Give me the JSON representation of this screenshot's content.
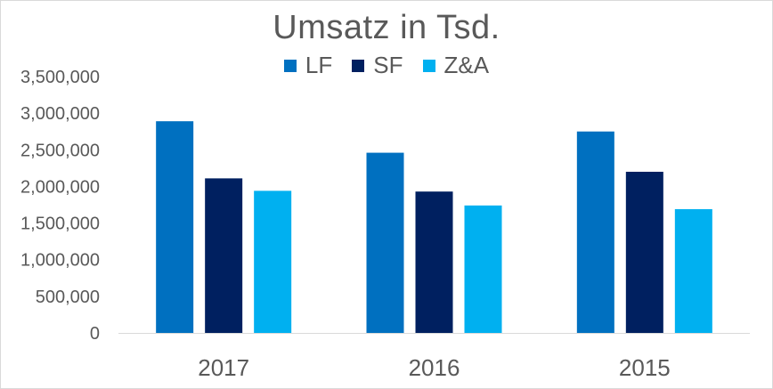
{
  "chart_data": {
    "type": "bar",
    "title": "Umsatz in Tsd.",
    "categories": [
      "2017",
      "2016",
      "2015"
    ],
    "series": [
      {
        "name": "LF",
        "color": "#0070c0",
        "values": [
          2890000,
          2460000,
          2750000
        ]
      },
      {
        "name": "SF",
        "color": "#002060",
        "values": [
          2110000,
          1930000,
          2200000
        ]
      },
      {
        "name": "Z&A",
        "color": "#00b0f0",
        "values": [
          1940000,
          1740000,
          1690000
        ]
      }
    ],
    "ylim": [
      0,
      3500000
    ],
    "yticks": [
      "0",
      "500,000",
      "1,000,000",
      "1,500,000",
      "2,000,000",
      "2,500,000",
      "3,000,000",
      "3,500,000"
    ],
    "xlabel": "",
    "ylabel": "",
    "grid": false,
    "legend_position": "top"
  }
}
